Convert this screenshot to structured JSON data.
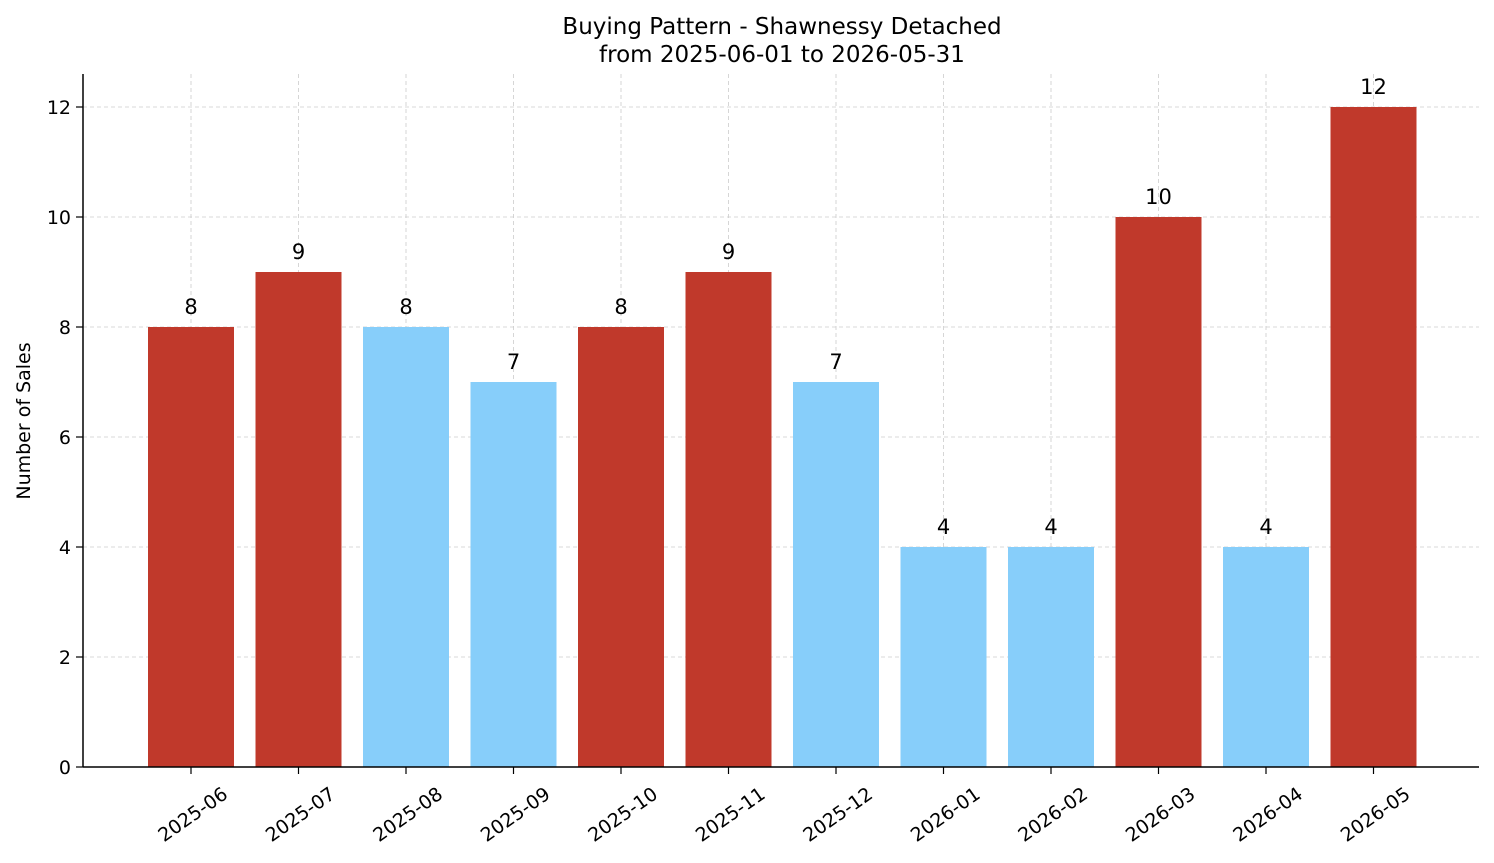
{
  "chart_data": {
    "type": "bar",
    "title": "Buying Pattern - Shawnessy Detached",
    "subtitle": "from 2025-06-01 to 2026-05-31",
    "xlabel": "",
    "ylabel": "Number of Sales",
    "ylim": [
      0,
      12.6
    ],
    "yticks": [
      0,
      2,
      4,
      6,
      8,
      10,
      12
    ],
    "grid": true,
    "categories": [
      "2025-06",
      "2025-07",
      "2025-08",
      "2025-09",
      "2025-10",
      "2025-11",
      "2025-12",
      "2026-01",
      "2026-02",
      "2026-03",
      "2026-04",
      "2026-05"
    ],
    "values": [
      8,
      9,
      8,
      7,
      8,
      9,
      7,
      4,
      4,
      10,
      4,
      12
    ],
    "bar_colors": [
      "#c0392b",
      "#c0392b",
      "#87cefa",
      "#87cefa",
      "#c0392b",
      "#c0392b",
      "#87cefa",
      "#87cefa",
      "#87cefa",
      "#c0392b",
      "#87cefa",
      "#c0392b"
    ],
    "data_labels": [
      "8",
      "9",
      "8",
      "7",
      "8",
      "9",
      "7",
      "4",
      "4",
      "10",
      "4",
      "12"
    ]
  }
}
